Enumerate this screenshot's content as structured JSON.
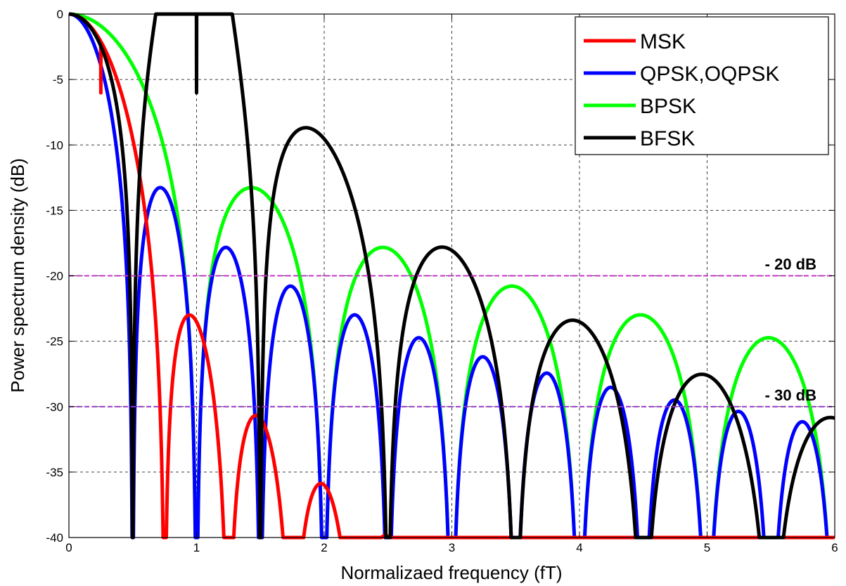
{
  "chart_data": {
    "type": "line",
    "xlabel": "Normalizaed frequency (fT)",
    "ylabel": "Power spectrum density (dB)",
    "xlim": [
      0,
      6
    ],
    "ylim": [
      -40,
      0
    ],
    "xticks": [
      "0",
      "1",
      "2",
      "3",
      "4",
      "5",
      "6"
    ],
    "yticks": [
      "0",
      "-5",
      "-10",
      "-15",
      "-20",
      "-25",
      "-30",
      "-35",
      "-40"
    ],
    "grid": true,
    "legend_position": "top-right",
    "series": [
      {
        "name": "MSK",
        "color": "#ff0000",
        "model": "msk"
      },
      {
        "name": "QPSK,OQPSK",
        "color": "#0000ff",
        "model": "qpsk"
      },
      {
        "name": "BPSK",
        "color": "#00ff00",
        "model": "bpsk"
      },
      {
        "name": "BFSK",
        "color": "#000000",
        "model": "bfsk"
      }
    ],
    "reference_lines": [
      {
        "y": -20,
        "label": "- 20 dB",
        "color": "#cc33cc"
      },
      {
        "y": -30,
        "label": "- 30 dB",
        "color": "#9933cc"
      }
    ]
  }
}
